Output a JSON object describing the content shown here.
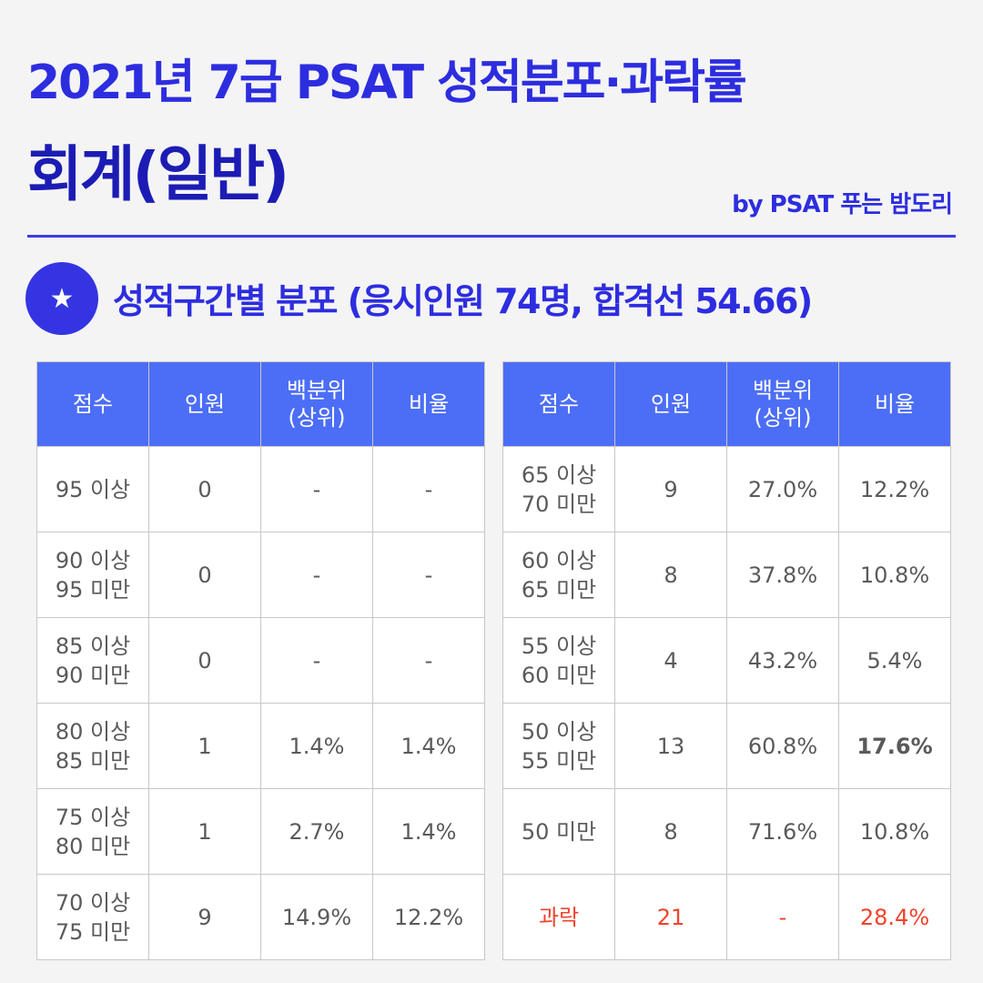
{
  "header": {
    "title": "2021년 7급 PSAT 성적분포·과락률",
    "subtitle": "회계(일반)",
    "byline": "by PSAT 푸는 밤도리"
  },
  "section": {
    "icon": "★",
    "heading": "성적구간별 분포 (응시인원 74명, 합격선 54.66)"
  },
  "tables": [
    {
      "columns": [
        "점수",
        "인원",
        "백분위\n(상위)",
        "비율"
      ],
      "rows": [
        [
          "95 이상",
          "0",
          "-",
          "-"
        ],
        [
          "90 이상\n95 미만",
          "0",
          "-",
          "-"
        ],
        [
          "85 이상\n90 미만",
          "0",
          "-",
          "-"
        ],
        [
          "80 이상\n85 미만",
          "1",
          "1.4%",
          "1.4%"
        ],
        [
          "75 이상\n80 미만",
          "1",
          "2.7%",
          "1.4%"
        ],
        [
          "70 이상\n75 미만",
          "9",
          "14.9%",
          "12.2%"
        ]
      ]
    },
    {
      "columns": [
        "점수",
        "인원",
        "백분위\n(상위)",
        "비율"
      ],
      "rows": [
        [
          "65 이상\n70 미만",
          "9",
          "27.0%",
          "12.2%"
        ],
        [
          "60 이상\n65 미만",
          "8",
          "37.8%",
          "10.8%"
        ],
        [
          "55 이상\n60 미만",
          "4",
          "43.2%",
          "5.4%"
        ],
        [
          "50 이상\n55 미만",
          "13",
          "60.8%",
          "17.6%"
        ],
        [
          "50 미만",
          "8",
          "71.6%",
          "10.8%"
        ],
        [
          "과락",
          "21",
          "-",
          "28.4%"
        ]
      ]
    }
  ]
}
